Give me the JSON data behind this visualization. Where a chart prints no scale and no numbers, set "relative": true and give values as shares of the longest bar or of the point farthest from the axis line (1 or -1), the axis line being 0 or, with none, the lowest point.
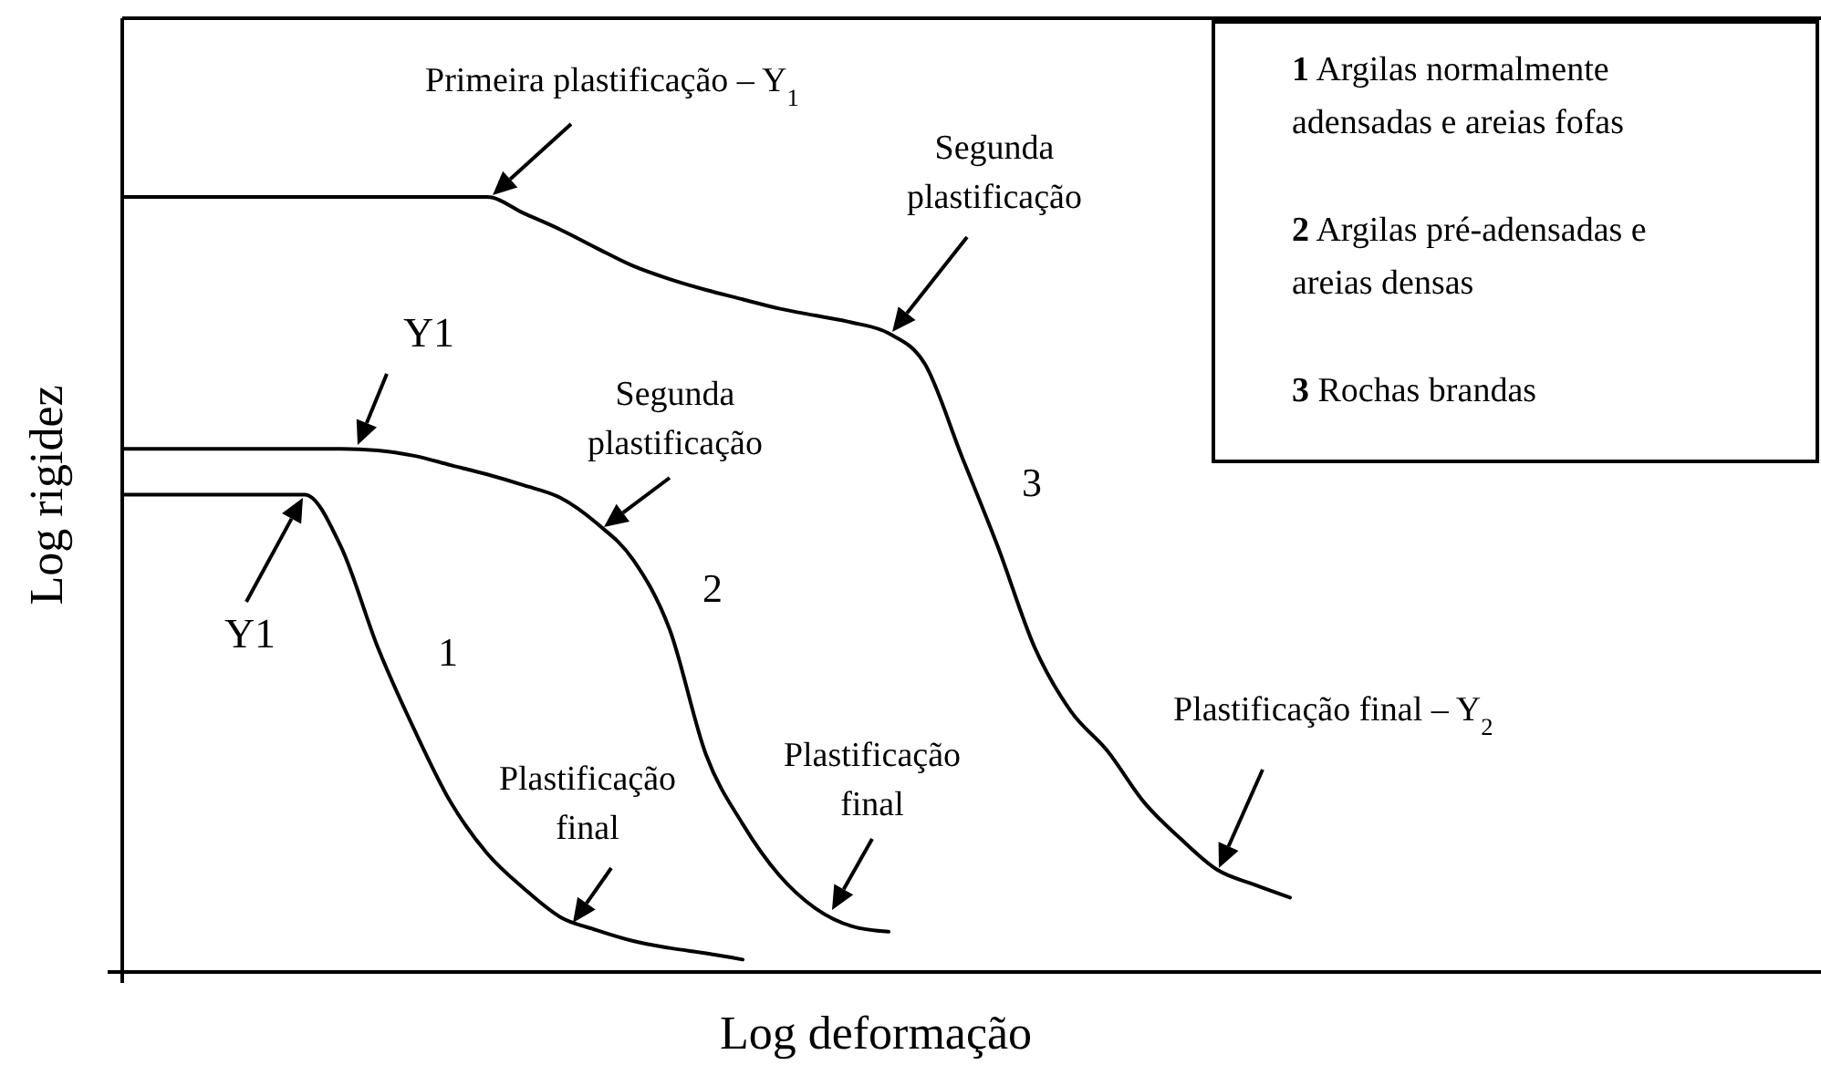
{
  "chart_data": {
    "type": "line",
    "relative": true,
    "xlabel": "Log deformação",
    "ylabel": "Log rigidez",
    "categories": [
      null,
      null,
      null,
      null,
      null,
      null,
      null,
      null,
      null,
      null,
      null,
      null,
      null,
      null,
      null,
      null,
      null,
      null,
      null,
      null,
      null,
      null,
      null,
      null,
      null,
      null,
      null,
      null,
      null,
      null,
      null,
      null,
      null,
      null,
      null,
      null,
      null,
      null,
      null,
      null,
      null,
      null,
      null,
      null,
      null,
      null,
      null
    ],
    "series": [
      {
        "name": "1",
        "color": "#000000",
        "values": [
          0.616,
          0.616,
          0.616,
          0.616,
          0.616,
          0.616,
          0.548,
          0.419,
          0.313,
          0.219,
          0.153,
          0.108,
          0.071,
          0.054,
          0.04,
          0.031,
          0.024,
          0.016,
          null,
          null,
          null,
          null,
          null,
          null,
          null,
          null,
          null,
          null,
          null,
          null,
          null,
          null,
          null,
          null,
          null,
          null,
          null,
          null,
          null,
          null,
          null,
          null,
          null,
          null,
          null,
          null,
          null
        ]
      },
      {
        "name": "2",
        "color": "#000000",
        "values": [
          0.675,
          0.675,
          0.675,
          0.675,
          0.675,
          0.675,
          0.675,
          0.673,
          0.666,
          0.654,
          0.642,
          0.628,
          0.612,
          0.579,
          0.532,
          0.442,
          0.28,
          0.191,
          0.125,
          0.082,
          0.059,
          0.052,
          null,
          null,
          null,
          null,
          null,
          null,
          null,
          null,
          null,
          null,
          null,
          null,
          null,
          null,
          null,
          null,
          null,
          null,
          null,
          null,
          null,
          null,
          null,
          null,
          null
        ]
      },
      {
        "name": "3",
        "color": "#000000",
        "values": [
          1,
          1,
          1,
          1,
          1,
          1,
          1,
          1,
          1,
          1,
          1,
          0.979,
          0.958,
          0.934,
          0.911,
          0.894,
          0.88,
          0.868,
          0.856,
          0.847,
          0.838,
          0.824,
          0.784,
          0.666,
          0.548,
          0.419,
          0.336,
          0.285,
          0.219,
          0.172,
          0.132,
          0.113,
          0.096,
          null,
          null,
          null,
          null,
          null,
          null,
          null,
          null,
          null,
          null,
          null,
          null,
          null,
          null
        ]
      }
    ],
    "annotations": [
      "Primeira plastificação – Y$_{1}$",
      "Segunda plastificação",
      "Y1",
      "Segunda plastificação",
      "Y1",
      "Plastificação final",
      "Plastificação final",
      "Plastificação final – Y$_{2}$",
      "1 Argilas normalmente adensadas e areias fofas",
      "2 Argilas pré-adensadas e areias densas",
      "3 Rochas brandas"
    ]
  }
}
